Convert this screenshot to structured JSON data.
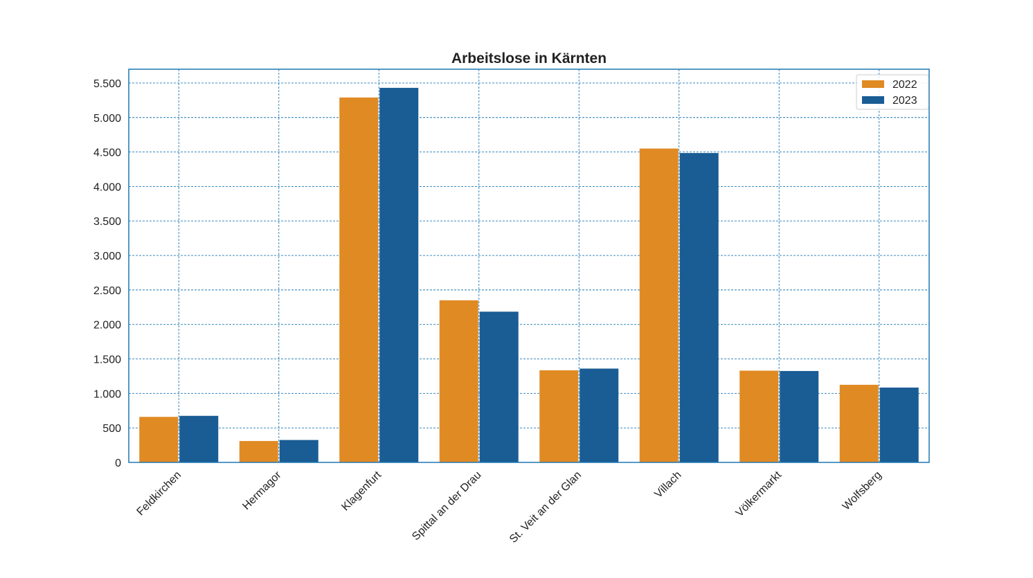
{
  "chart_data": {
    "type": "bar",
    "title": "Arbeitslose in Kärnten",
    "xlabel": "",
    "ylabel": "",
    "categories": [
      "Feldkirchen",
      "Hermagor",
      "Klagenfurt",
      "Spittal an der Drau",
      "St. Veit an der Glan",
      "Villach",
      "Völkermarkt",
      "Wolfsberg"
    ],
    "series": [
      {
        "name": "2022",
        "color": "#e08a24",
        "values": [
          660,
          310,
          5290,
          2350,
          1335,
          4550,
          1330,
          1125
        ]
      },
      {
        "name": "2023",
        "color": "#1a5c94",
        "values": [
          675,
          325,
          5430,
          2185,
          1360,
          4485,
          1325,
          1085
        ]
      }
    ],
    "ylim": [
      0,
      5700
    ],
    "yticks": [
      0,
      500,
      1000,
      1500,
      2000,
      2500,
      3000,
      3500,
      4000,
      4500,
      5000,
      5500
    ],
    "ytick_labels": [
      "0",
      "500",
      "1.000",
      "1.500",
      "2.000",
      "2.500",
      "3.000",
      "3.500",
      "4.000",
      "4.500",
      "5.000",
      "5.500"
    ],
    "grid": true,
    "legend_position": "top-right",
    "axis_color": "#1f77b4"
  }
}
